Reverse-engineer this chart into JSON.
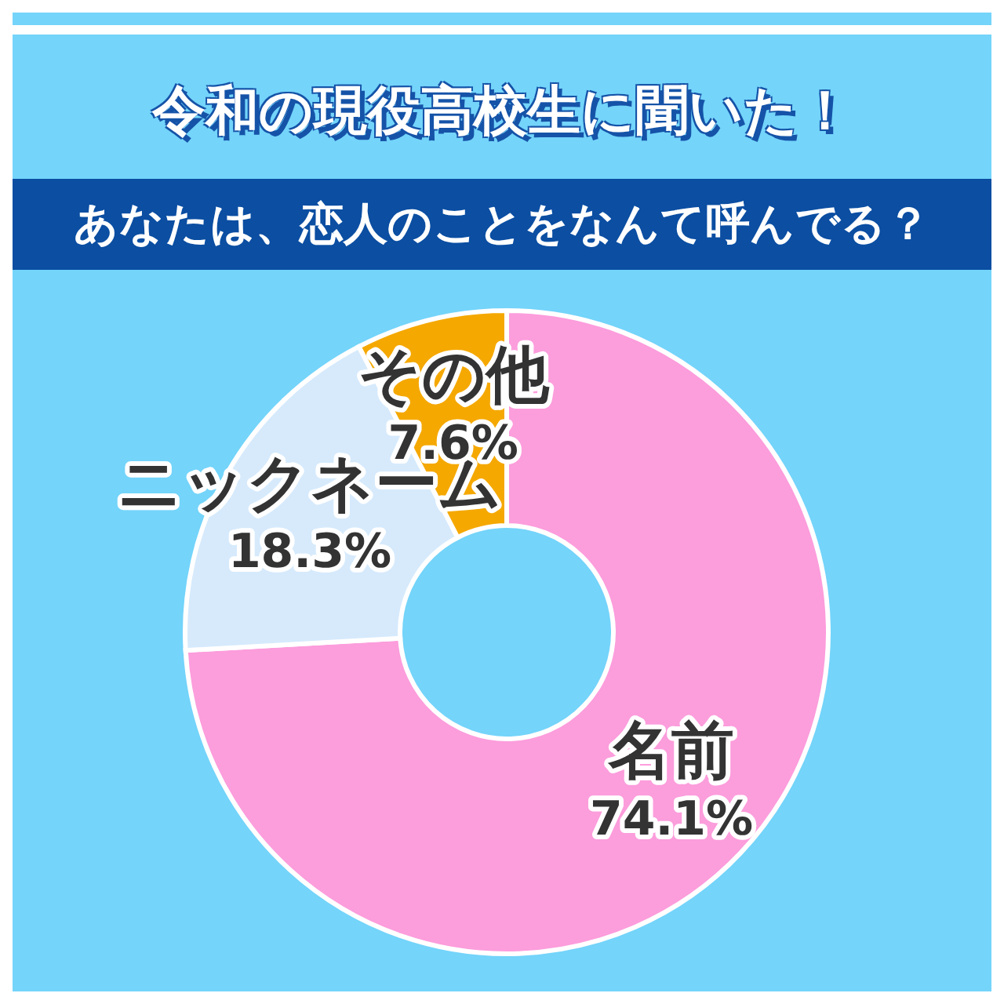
{
  "chart_data": {
    "type": "donut",
    "title": "令和の現役高校生に聞いた！",
    "subtitle": "あなたは、恋人のことをなんて呼んでる？",
    "categories": [
      "名前",
      "ニックネーム",
      "その他"
    ],
    "values": [
      74.1,
      18.3,
      7.6
    ],
    "value_labels": [
      "74.1%",
      "18.3%",
      "7.6%"
    ],
    "colors": [
      "#fc9ddc",
      "#d6eafc",
      "#f5a800"
    ]
  }
}
